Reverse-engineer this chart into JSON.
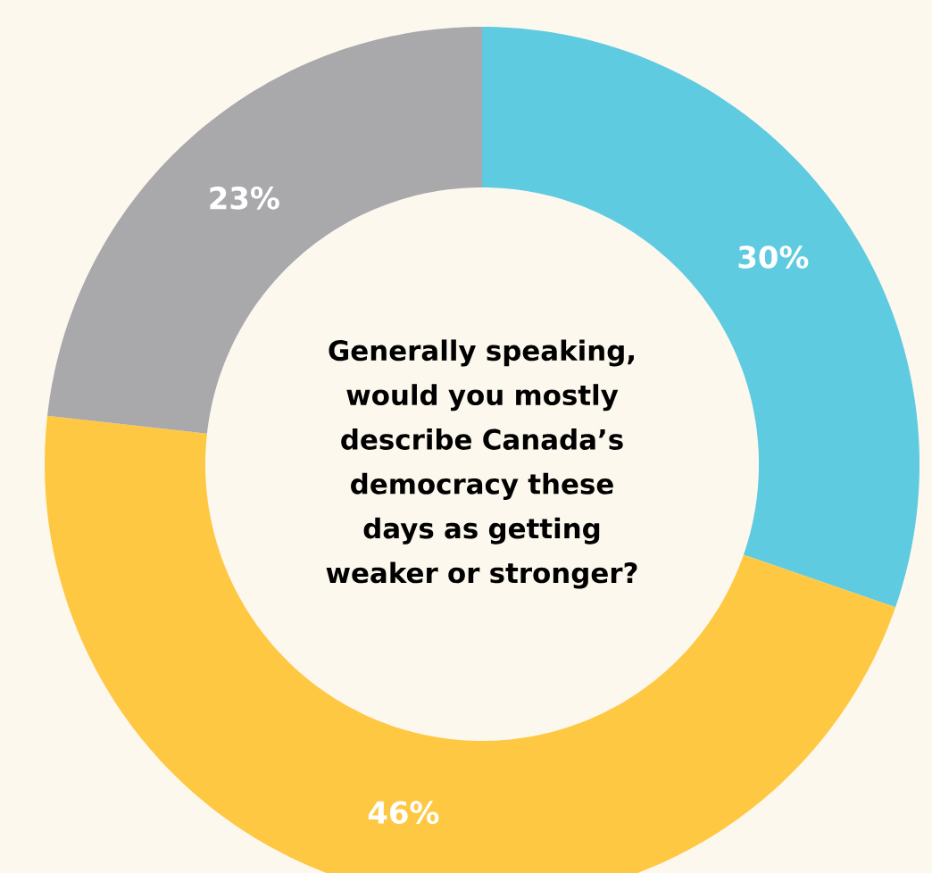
{
  "chart_data": {
    "type": "donut",
    "title": "Generally speaking, would you mostly describe Canada’s democracy these days as getting weaker or stronger?",
    "categories": [
      null,
      null,
      null
    ],
    "values": [
      30,
      46,
      23
    ],
    "colors": [
      "#5fcbe0",
      "#fec843",
      "#a9a8ab"
    ],
    "value_labels": [
      "30%",
      "46%",
      "23%"
    ]
  }
}
